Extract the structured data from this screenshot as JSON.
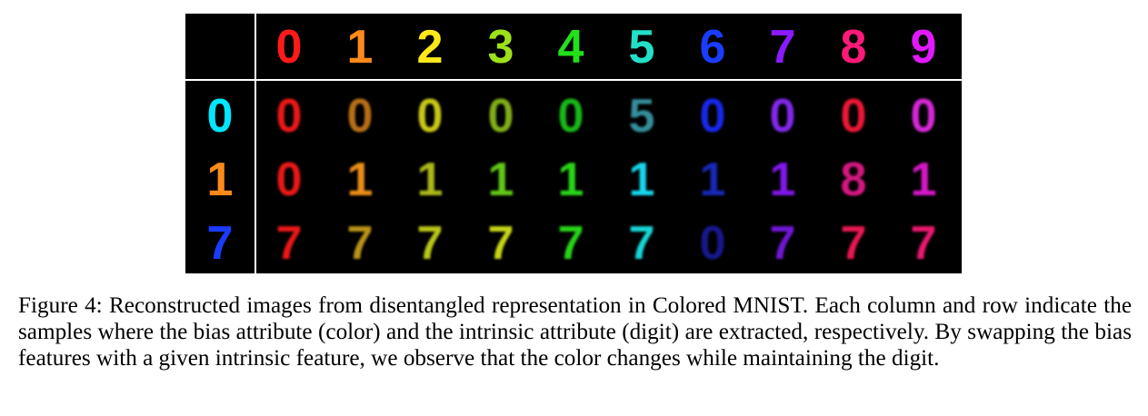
{
  "figure": {
    "header_digits": [
      "0",
      "1",
      "2",
      "3",
      "4",
      "5",
      "6",
      "7",
      "8",
      "9"
    ],
    "header_colors": [
      "#ff1a1a",
      "#ff8a1a",
      "#ffe81a",
      "#9de01a",
      "#22e01a",
      "#22e0c8",
      "#1a3cff",
      "#8a1aff",
      "#ff1a7a",
      "#e01aff"
    ],
    "row_digits": [
      "0",
      "1",
      "7"
    ],
    "row_source_colors": [
      "#00e6ff",
      "#ff8a1a",
      "#1a3cff"
    ],
    "rows": [
      {
        "cells": [
          {
            "digit": "0",
            "color": "#ff1a1a"
          },
          {
            "digit": "0",
            "color": "#c8781a"
          },
          {
            "digit": "0",
            "color": "#d8d81a"
          },
          {
            "digit": "0",
            "color": "#8cbc1a"
          },
          {
            "digit": "0",
            "color": "#1ac81a"
          },
          {
            "digit": "5",
            "color": "#3a9aa8"
          },
          {
            "digit": "0",
            "color": "#1a2cff"
          },
          {
            "digit": "0",
            "color": "#8c2cff"
          },
          {
            "digit": "0",
            "color": "#ff1a3a"
          },
          {
            "digit": "0",
            "color": "#e82ce8"
          }
        ]
      },
      {
        "cells": [
          {
            "digit": "0",
            "color": "#ff1a1a"
          },
          {
            "digit": "1",
            "color": "#ff9a1a"
          },
          {
            "digit": "1",
            "color": "#b8c81a"
          },
          {
            "digit": "1",
            "color": "#6ad81a"
          },
          {
            "digit": "1",
            "color": "#2ae81a"
          },
          {
            "digit": "1",
            "color": "#1ae8ff"
          },
          {
            "digit": "1",
            "color": "#1a2cc8"
          },
          {
            "digit": "1",
            "color": "#8c1aff"
          },
          {
            "digit": "8",
            "color": "#e81a8c"
          },
          {
            "digit": "1",
            "color": "#e81ad8"
          }
        ]
      },
      {
        "cells": [
          {
            "digit": "7",
            "color": "#ff1a1a"
          },
          {
            "digit": "7",
            "color": "#c8a01a"
          },
          {
            "digit": "7",
            "color": "#c8d81a"
          },
          {
            "digit": "7",
            "color": "#d8e81a"
          },
          {
            "digit": "7",
            "color": "#2ae81a"
          },
          {
            "digit": "7",
            "color": "#1ae8e8"
          },
          {
            "digit": "0",
            "color": "#1a1a9a"
          },
          {
            "digit": "7",
            "color": "#7a1ae8"
          },
          {
            "digit": "7",
            "color": "#ff1a5a"
          },
          {
            "digit": "7",
            "color": "#ff1a7a"
          }
        ]
      }
    ]
  },
  "caption": "Figure 4: Reconstructed images from disentangled representation in Colored MNIST. Each column and row indicate the samples where the bias attribute (color) and the intrinsic attribute (digit) are extracted, respectively. By swapping the bias features with a given intrinsic feature, we observe that the color changes while maintaining the digit."
}
